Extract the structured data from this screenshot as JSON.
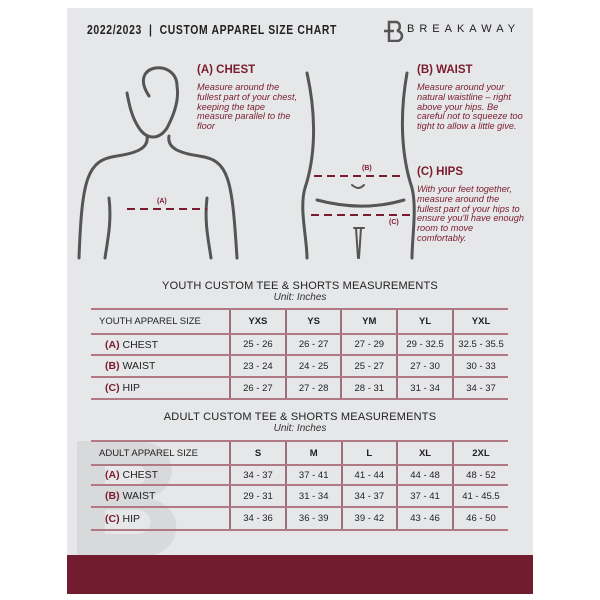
{
  "header": {
    "title": "2022/2023  |  CUSTOM APPAREL SIZE CHART",
    "brand": "BREAKAWAY",
    "watermark": "B"
  },
  "measures": {
    "chest": {
      "title": "(A) CHEST",
      "text": "Measure around the fullest part of your chest, keeping the tape measure parallel to the floor",
      "marker": "(A)"
    },
    "waist": {
      "title": "(B) WAIST",
      "text": "Measure around your natural waistline – right above your hips. Be careful not to squeeze too tight to allow a little give.",
      "marker": "(B)"
    },
    "hips": {
      "title": "(C) HIPS",
      "text": "With your feet together, measure around the fullest part of your hips to ensure you'll have enough room to move comfortably.",
      "marker": "(C)"
    }
  },
  "youth": {
    "title": "YOUTH CUSTOM TEE & SHORTS MEASUREMENTS",
    "unit": "Unit: Inches",
    "header": [
      "YOUTH APPAREL SIZE",
      "YXS",
      "YS",
      "YM",
      "YL",
      "YXL"
    ],
    "rows": [
      {
        "code": "(A)",
        "label": "CHEST",
        "values": [
          "25 - 26",
          "26 - 27",
          "27 - 29",
          "29 - 32.5",
          "32.5 - 35.5"
        ]
      },
      {
        "code": "(B)",
        "label": "WAIST",
        "values": [
          "23 - 24",
          "24 - 25",
          "25 - 27",
          "27 - 30",
          "30 - 33"
        ]
      },
      {
        "code": "(C)",
        "label": "HIP",
        "values": [
          "26 - 27",
          "27 - 28",
          "28 - 31",
          "31 - 34",
          "34 - 37"
        ]
      }
    ]
  },
  "adult": {
    "title": "ADULT CUSTOM TEE & SHORTS MEASUREMENTS",
    "unit": "Unit: Inches",
    "header": [
      "ADULT APPAREL SIZE",
      "S",
      "M",
      "L",
      "XL",
      "2XL"
    ],
    "rows": [
      {
        "code": "(A)",
        "label": "CHEST",
        "values": [
          "34 - 37",
          "37 - 41",
          "41 - 44",
          "44 - 48",
          "48 - 52"
        ]
      },
      {
        "code": "(B)",
        "label": "WAIST",
        "values": [
          "29 - 31",
          "31 - 34",
          "34 - 37",
          "37 - 41",
          "41 - 45.5"
        ]
      },
      {
        "code": "(C)",
        "label": "HIP",
        "values": [
          "34 - 36",
          "36 - 39",
          "39 - 42",
          "43 - 46",
          "46 - 50"
        ]
      }
    ]
  },
  "colors": {
    "accent": "#721c30",
    "background": "#e6e7e9"
  }
}
